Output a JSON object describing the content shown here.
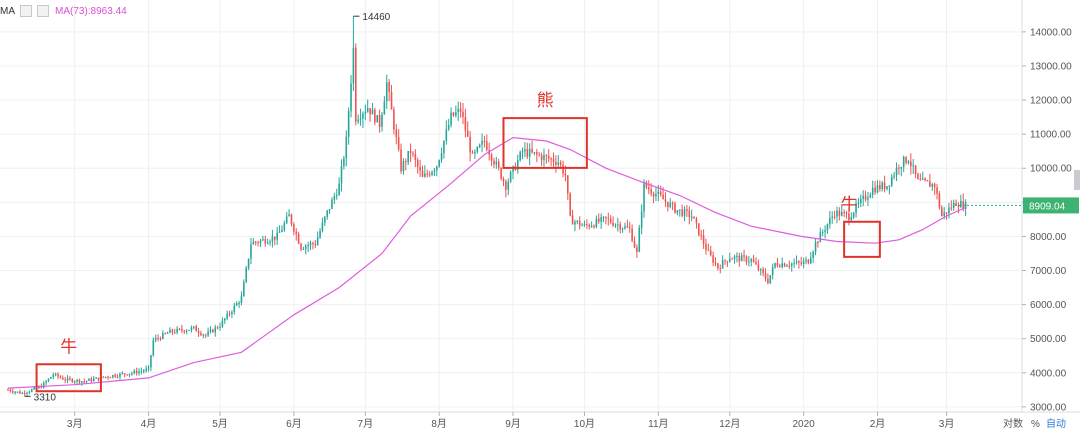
{
  "indicator": {
    "name": "MA",
    "label": "MA(73):8963.44"
  },
  "annotations": [
    {
      "text": "牛",
      "color": "#e0332b"
    },
    {
      "text": "熊",
      "color": "#e0332b"
    },
    {
      "text": "牛",
      "color": "#e0332b"
    }
  ],
  "footer": {
    "log_label": "对数",
    "pct_label": "%",
    "auto_label": "自动"
  },
  "chart_data": {
    "type": "candlestick",
    "y_scale": "linear",
    "ylim": [
      2850,
      14700
    ],
    "y_ticks": [
      3000,
      4000,
      5000,
      6000,
      7000,
      8000,
      9000,
      10000,
      11000,
      12000,
      13000,
      14000
    ],
    "y_tick_labels": [
      "3000.00",
      "4000.00",
      "5000.00",
      "6000.00",
      "7000.00",
      "8000.00",
      "9000.00",
      "10000.00",
      "11000.00",
      "12000.00",
      "13000.00",
      "14000.00"
    ],
    "x_tick_labels": [
      {
        "date": "2019-03-01",
        "label": "3月"
      },
      {
        "date": "2019-04-01",
        "label": "4月"
      },
      {
        "date": "2019-05-01",
        "label": "5月"
      },
      {
        "date": "2019-06-01",
        "label": "6月"
      },
      {
        "date": "2019-07-01",
        "label": "7月"
      },
      {
        "date": "2019-08-01",
        "label": "8月"
      },
      {
        "date": "2019-09-01",
        "label": "9月"
      },
      {
        "date": "2019-10-01",
        "label": "10月"
      },
      {
        "date": "2019-11-01",
        "label": "11月"
      },
      {
        "date": "2019-12-01",
        "label": "12月"
      },
      {
        "date": "2020-01-01",
        "label": "2020"
      },
      {
        "date": "2020-02-01",
        "label": "2月"
      },
      {
        "date": "2020-03-01",
        "label": "3月"
      }
    ],
    "x_start": "2019-02-01",
    "x_end": "2020-03-10",
    "last_price": 8909.04,
    "last_price_label": "8909.04",
    "high_marker": {
      "date": "2019-06-26",
      "value": 14460,
      "label": "14460"
    },
    "low_marker": {
      "date": "2019-02-08",
      "value": 3310,
      "label": "3310"
    },
    "up_color": "#26a69a",
    "down_color": "#ef5350",
    "ma_color": "#e05ce0",
    "price_path": [
      [
        "2019-02-01",
        3500
      ],
      [
        "2019-02-07",
        3400
      ],
      [
        "2019-02-15",
        3600
      ],
      [
        "2019-02-20",
        3950
      ],
      [
        "2019-02-25",
        3800
      ],
      [
        "2019-03-05",
        3750
      ],
      [
        "2019-03-15",
        3900
      ],
      [
        "2019-03-25",
        4000
      ],
      [
        "2019-04-01",
        4100
      ],
      [
        "2019-04-03",
        4950
      ],
      [
        "2019-04-10",
        5200
      ],
      [
        "2019-04-20",
        5300
      ],
      [
        "2019-04-25",
        5100
      ],
      [
        "2019-05-01",
        5400
      ],
      [
        "2019-05-10",
        6200
      ],
      [
        "2019-05-14",
        7800
      ],
      [
        "2019-05-20",
        7900
      ],
      [
        "2019-05-25",
        8000
      ],
      [
        "2019-05-30",
        8600
      ],
      [
        "2019-06-04",
        7700
      ],
      [
        "2019-06-10",
        7800
      ],
      [
        "2019-06-15",
        8700
      ],
      [
        "2019-06-20",
        9500
      ],
      [
        "2019-06-23",
        10800
      ],
      [
        "2019-06-26",
        13500
      ],
      [
        "2019-06-27",
        11500
      ],
      [
        "2019-07-02",
        11800
      ],
      [
        "2019-07-07",
        11300
      ],
      [
        "2019-07-10",
        12500
      ],
      [
        "2019-07-16",
        10000
      ],
      [
        "2019-07-20",
        10500
      ],
      [
        "2019-07-25",
        9700
      ],
      [
        "2019-07-31",
        10100
      ],
      [
        "2019-08-06",
        11500
      ],
      [
        "2019-08-10",
        11700
      ],
      [
        "2019-08-15",
        10300
      ],
      [
        "2019-08-20",
        10800
      ],
      [
        "2019-08-29",
        9500
      ],
      [
        "2019-09-05",
        10500
      ],
      [
        "2019-09-15",
        10300
      ],
      [
        "2019-09-20",
        10200
      ],
      [
        "2019-09-23",
        9800
      ],
      [
        "2019-09-25",
        8500
      ],
      [
        "2019-10-01",
        8300
      ],
      [
        "2019-10-10",
        8500
      ],
      [
        "2019-10-20",
        8200
      ],
      [
        "2019-10-23",
        7500
      ],
      [
        "2019-10-26",
        9500
      ],
      [
        "2019-11-01",
        9200
      ],
      [
        "2019-11-08",
        8800
      ],
      [
        "2019-11-15",
        8600
      ],
      [
        "2019-11-22",
        7500
      ],
      [
        "2019-11-26",
        7100
      ],
      [
        "2019-12-01",
        7400
      ],
      [
        "2019-12-10",
        7300
      ],
      [
        "2019-12-17",
        6700
      ],
      [
        "2019-12-20",
        7200
      ],
      [
        "2019-12-31",
        7200
      ],
      [
        "2020-01-03",
        7300
      ],
      [
        "2020-01-06",
        7800
      ],
      [
        "2020-01-14",
        8700
      ],
      [
        "2020-01-20",
        8600
      ],
      [
        "2020-01-30",
        9400
      ],
      [
        "2020-02-05",
        9500
      ],
      [
        "2020-02-10",
        10100
      ],
      [
        "2020-02-14",
        10300
      ],
      [
        "2020-02-18",
        9600
      ],
      [
        "2020-02-25",
        9500
      ],
      [
        "2020-02-28",
        8600
      ],
      [
        "2020-03-05",
        9000
      ],
      [
        "2020-03-09",
        8900
      ]
    ],
    "ma_series": [
      [
        "2019-02-01",
        3550
      ],
      [
        "2019-03-01",
        3650
      ],
      [
        "2019-04-01",
        3850
      ],
      [
        "2019-04-20",
        4300
      ],
      [
        "2019-05-10",
        4600
      ],
      [
        "2019-06-01",
        5700
      ],
      [
        "2019-06-20",
        6500
      ],
      [
        "2019-07-08",
        7500
      ],
      [
        "2019-07-20",
        8600
      ],
      [
        "2019-08-05",
        9500
      ],
      [
        "2019-08-20",
        10400
      ],
      [
        "2019-09-01",
        10900
      ],
      [
        "2019-09-15",
        10800
      ],
      [
        "2019-09-25",
        10550
      ],
      [
        "2019-10-10",
        10000
      ],
      [
        "2019-10-25",
        9600
      ],
      [
        "2019-11-10",
        9200
      ],
      [
        "2019-11-25",
        8700
      ],
      [
        "2019-12-10",
        8300
      ],
      [
        "2019-12-31",
        8000
      ],
      [
        "2020-01-15",
        7850
      ],
      [
        "2020-01-31",
        7800
      ],
      [
        "2020-02-10",
        7900
      ],
      [
        "2020-02-20",
        8200
      ],
      [
        "2020-03-01",
        8600
      ],
      [
        "2020-03-09",
        8850
      ]
    ],
    "highlight_boxes": [
      {
        "from": "2019-02-13",
        "to": "2019-03-12",
        "low": 3460,
        "high": 4250
      },
      {
        "from": "2019-08-28",
        "to": "2019-10-02",
        "low": 10010,
        "high": 11470
      },
      {
        "from": "2020-01-18",
        "to": "2020-02-02",
        "low": 7400,
        "high": 8430
      }
    ]
  }
}
